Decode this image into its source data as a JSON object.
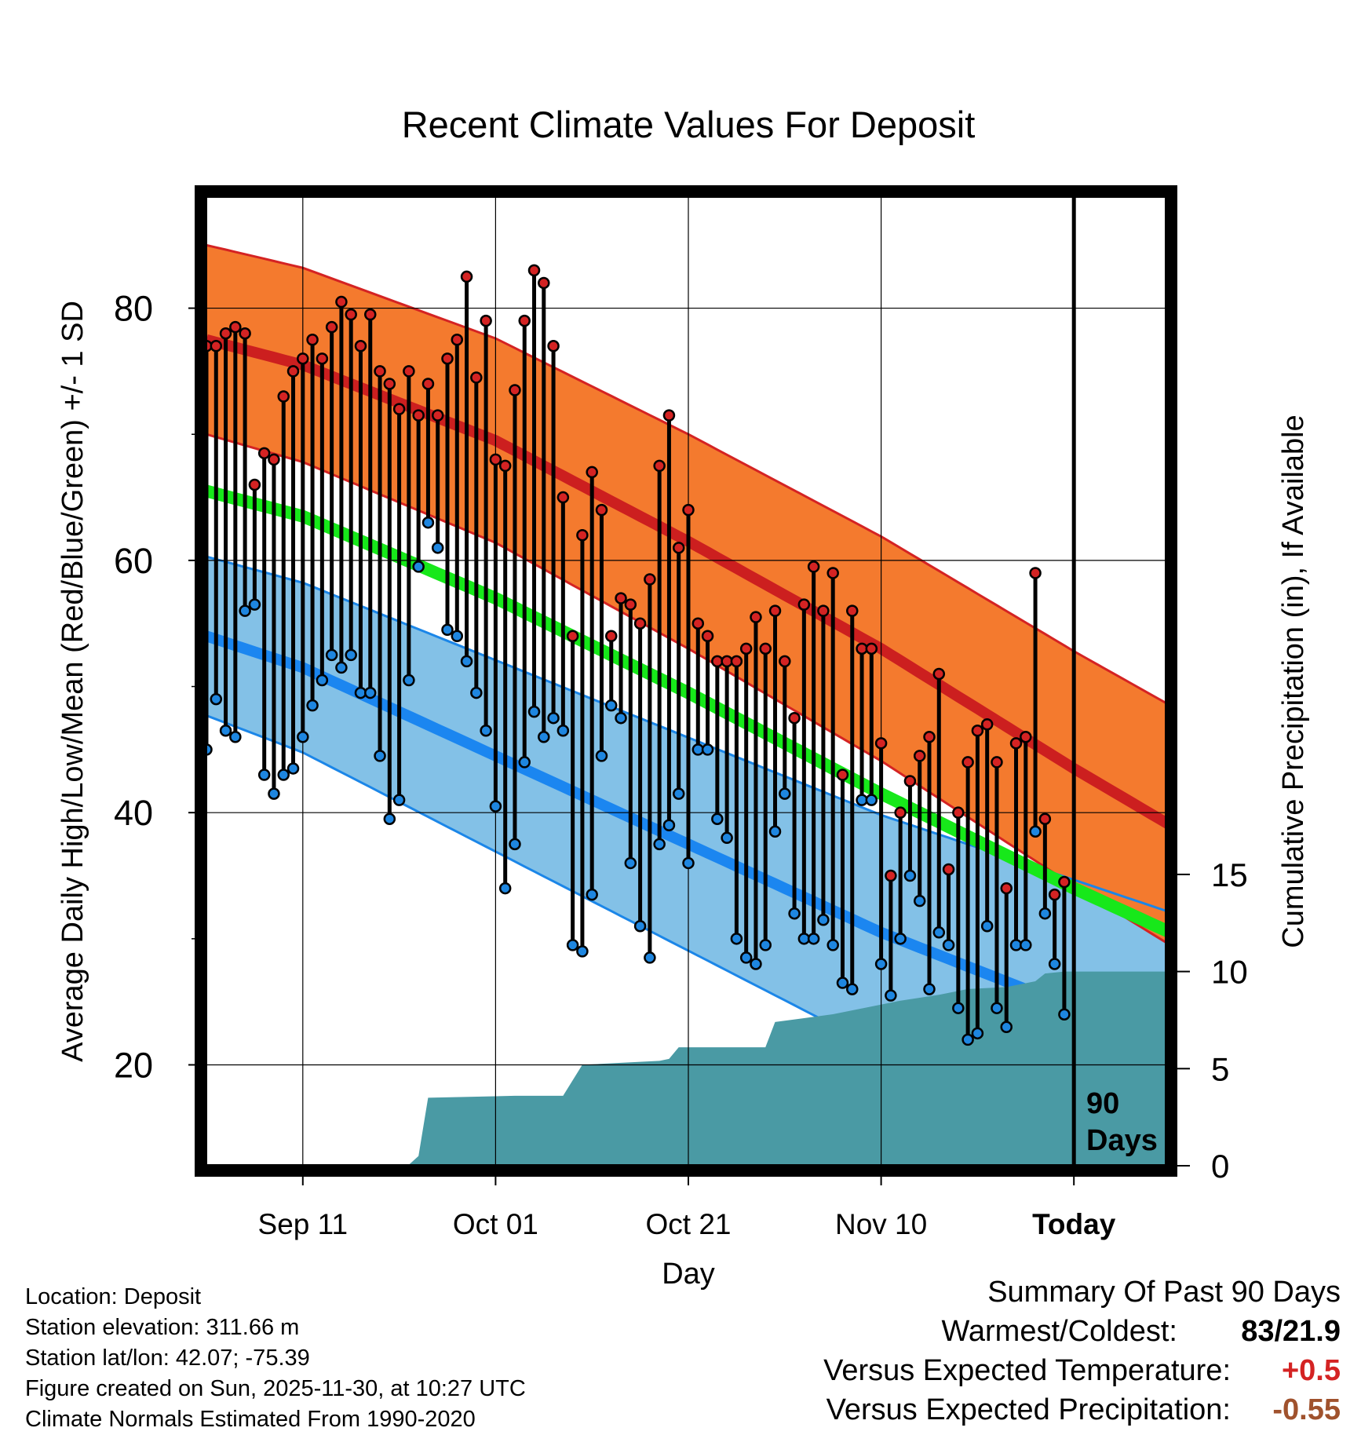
{
  "colors": {
    "high_band": "#f47a2e",
    "high_edge": "#d42323",
    "high_mean": "#cc1f1f",
    "low_band": "#83c1e7",
    "low_edge": "#1b86e8",
    "low_mean": "#1b86f0",
    "mean_line": "#17e81a",
    "precip": "#4a9aa4",
    "high_dot": "#d42323",
    "low_dot": "#1e86e0",
    "pos_anomaly": "#d42323",
    "neg_anomaly": "#a0522d"
  },
  "chart_data": {
    "type": "line",
    "title": "Recent Climate Values For Deposit",
    "xlabel": "Day",
    "ylabel": "Average Daily High/Low/Mean (Red/Blue/Green) +/- 1 SD",
    "y2label": "Cumulative Precipitation (in), If Available",
    "xlim": [
      -10,
      90
    ],
    "ylim": [
      12,
      89
    ],
    "y2lim": [
      0,
      50
    ],
    "xticks": [
      {
        "value": 0,
        "label": "Sep 11"
      },
      {
        "value": 20,
        "label": "Oct 01"
      },
      {
        "value": 40,
        "label": "Oct 21"
      },
      {
        "value": 60,
        "label": "Nov 10"
      },
      {
        "value": 80,
        "label": "Today"
      }
    ],
    "yticks": [
      20,
      40,
      60,
      80
    ],
    "y2ticks": [
      0,
      5,
      10,
      15
    ],
    "today_x": 80,
    "today_label_line1": "90",
    "today_label_line2": "Days",
    "normal_high": [
      [
        -10,
        77.5
      ],
      [
        0,
        75.5
      ],
      [
        20,
        69.5
      ],
      [
        40,
        61.5
      ],
      [
        60,
        53
      ],
      [
        80,
        43.5
      ],
      [
        90,
        39
      ]
    ],
    "normal_high_sd": [
      [
        -10,
        7.5
      ],
      [
        90,
        9.5
      ]
    ],
    "normal_low": [
      [
        -10,
        54
      ],
      [
        0,
        51.5
      ],
      [
        20,
        44.5
      ],
      [
        40,
        37.5
      ],
      [
        60,
        30.5
      ],
      [
        80,
        24.5
      ],
      [
        90,
        21.5
      ]
    ],
    "normal_low_sd": [
      [
        -10,
        6.3
      ],
      [
        90,
        10.6
      ]
    ],
    "normal_mean": [
      [
        -10,
        65.5
      ],
      [
        0,
        63.5
      ],
      [
        20,
        57
      ],
      [
        40,
        49.5
      ],
      [
        60,
        41.5
      ],
      [
        80,
        34
      ],
      [
        90,
        30.5
      ]
    ],
    "daily_high": [
      77,
      77,
      78,
      78.5,
      78,
      66,
      68.5,
      68,
      73,
      75,
      76,
      77.5,
      76,
      78.5,
      80.5,
      79.5,
      77,
      79.5,
      75,
      74,
      72,
      75,
      71.5,
      74,
      71.5,
      76,
      77.5,
      82.5,
      74.5,
      79,
      68,
      67.5,
      73.5,
      79,
      83,
      82,
      77,
      65,
      54,
      62,
      67,
      64,
      54,
      57,
      56.5,
      55,
      58.5,
      67.5,
      71.5,
      61,
      64,
      55,
      54,
      52,
      52,
      52,
      53,
      55.5,
      53,
      56,
      52,
      47.5,
      56.5,
      59.5,
      56,
      59,
      43,
      56,
      53,
      53,
      45.5,
      35,
      40,
      42.5,
      44.5,
      46,
      51,
      35.5,
      40,
      44,
      46.5,
      47,
      44,
      34,
      45.5,
      46,
      59,
      39.5,
      33.5,
      34.5
    ],
    "daily_low": [
      45,
      49,
      46.5,
      46,
      56,
      56.5,
      43,
      41.5,
      43,
      43.5,
      46,
      48.5,
      50.5,
      52.5,
      51.5,
      52.5,
      49.5,
      49.5,
      44.5,
      39.5,
      41,
      50.5,
      59.5,
      63,
      61,
      54.5,
      54,
      52,
      49.5,
      46.5,
      40.5,
      34,
      37.5,
      44,
      48,
      46,
      47.5,
      46.5,
      29.5,
      29,
      33.5,
      44.5,
      48.5,
      47.5,
      36,
      31,
      28.5,
      37.5,
      39,
      41.5,
      36,
      45,
      45,
      39.5,
      38,
      30,
      28.5,
      28,
      29.5,
      38.5,
      41.5,
      32,
      30,
      30,
      31.5,
      29.5,
      26.5,
      26,
      41,
      41,
      28,
      25.5,
      30,
      35,
      33,
      26,
      30.5,
      29.5,
      24.5,
      22,
      22.5,
      31,
      24.5,
      23,
      29.5,
      29.5,
      38.5,
      32,
      28,
      24
    ],
    "precip_cumulative": [
      [
        -10,
        0.05
      ],
      [
        0,
        0.05
      ],
      [
        11,
        0.05
      ],
      [
        12,
        0.5
      ],
      [
        13,
        3.5
      ],
      [
        22,
        3.6
      ],
      [
        27,
        3.6
      ],
      [
        29,
        5.2
      ],
      [
        33,
        5.3
      ],
      [
        37,
        5.4
      ],
      [
        38,
        5.5
      ],
      [
        39,
        6.1
      ],
      [
        48,
        6.1
      ],
      [
        49,
        7.4
      ],
      [
        52,
        7.6
      ],
      [
        55,
        7.8
      ],
      [
        58,
        8.1
      ],
      [
        62,
        8.5
      ],
      [
        66,
        8.8
      ],
      [
        69,
        9.1
      ],
      [
        73,
        9.2
      ],
      [
        76,
        9.5
      ],
      [
        77,
        9.9
      ],
      [
        79,
        10.0
      ],
      [
        90,
        10.0
      ]
    ]
  },
  "info": {
    "location": "Location: Deposit",
    "elevation": "Station elevation: 311.66 m",
    "latlon": "Station lat/lon: 42.07; -75.39",
    "created": "Figure created on Sun, 2025-11-30, at 10:27 UTC",
    "normals": "Climate Normals Estimated From 1990-2020"
  },
  "summary": {
    "title": "Summary Of Past 90 Days",
    "warmest_label": "Warmest/Coldest:",
    "warmest_value": "83/21.9",
    "temp_label": "Versus Expected Temperature:",
    "temp_value": "+0.5",
    "precip_label": "Versus Expected Precipitation:",
    "precip_value": "-0.55"
  }
}
